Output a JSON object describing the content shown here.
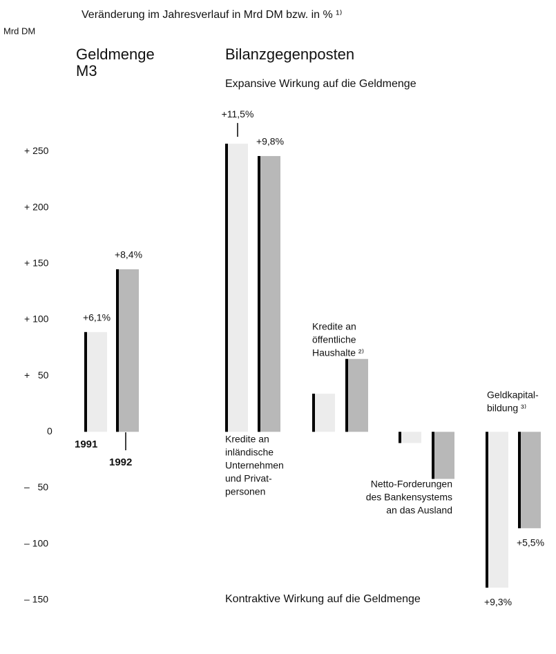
{
  "chart_data": {
    "type": "bar",
    "title": "Veränderung im Jahresverlauf in Mrd DM bzw. in % ¹⁾",
    "y_label": "Mrd DM",
    "group_heading": "Bilanzgegenposten",
    "annotations": [
      "Expansive Wirkung auf die Geldmenge",
      "Kontraktive Wirkung auf die Geldmenge"
    ],
    "categories": [
      [
        "Geldmenge",
        "M3"
      ],
      [
        "Kredite an",
        "inländische",
        "Unternehmen",
        "und Privat-",
        "personen"
      ],
      [
        "Kredite an",
        "öffentliche",
        "Haushalte ²⁾"
      ],
      [
        "Netto-Forderungen",
        "des Bankensystems",
        "an das Ausland"
      ],
      [
        "Geldkapital-",
        "bildung ³⁾"
      ]
    ],
    "series": [
      {
        "name": "1991",
        "color": "#ececec",
        "values": [
          89,
          257,
          34,
          -10,
          -139
        ],
        "rates": [
          "+6,1%",
          "+11,5%",
          null,
          null,
          "+9,3%"
        ]
      },
      {
        "name": "1992",
        "color": "#b8b8b8",
        "values": [
          145,
          246,
          65,
          -42,
          -86
        ],
        "rates": [
          "+8,4%",
          "+9,8%",
          null,
          null,
          "+5,5%"
        ]
      }
    ],
    "ylim": [
      -160,
      270
    ],
    "yticks": [
      {
        "value": 250,
        "label": "+ 250"
      },
      {
        "value": 200,
        "label": "+ 200"
      },
      {
        "value": 150,
        "label": "+ 150"
      },
      {
        "value": 100,
        "label": "+ 100"
      },
      {
        "value": 50,
        "label": "+   50"
      },
      0,
      {
        "value": -50,
        "label": "–   50"
      },
      {
        "value": -100,
        "label": "– 100"
      },
      {
        "value": -150,
        "label": "– 150"
      }
    ],
    "grid": false
  }
}
